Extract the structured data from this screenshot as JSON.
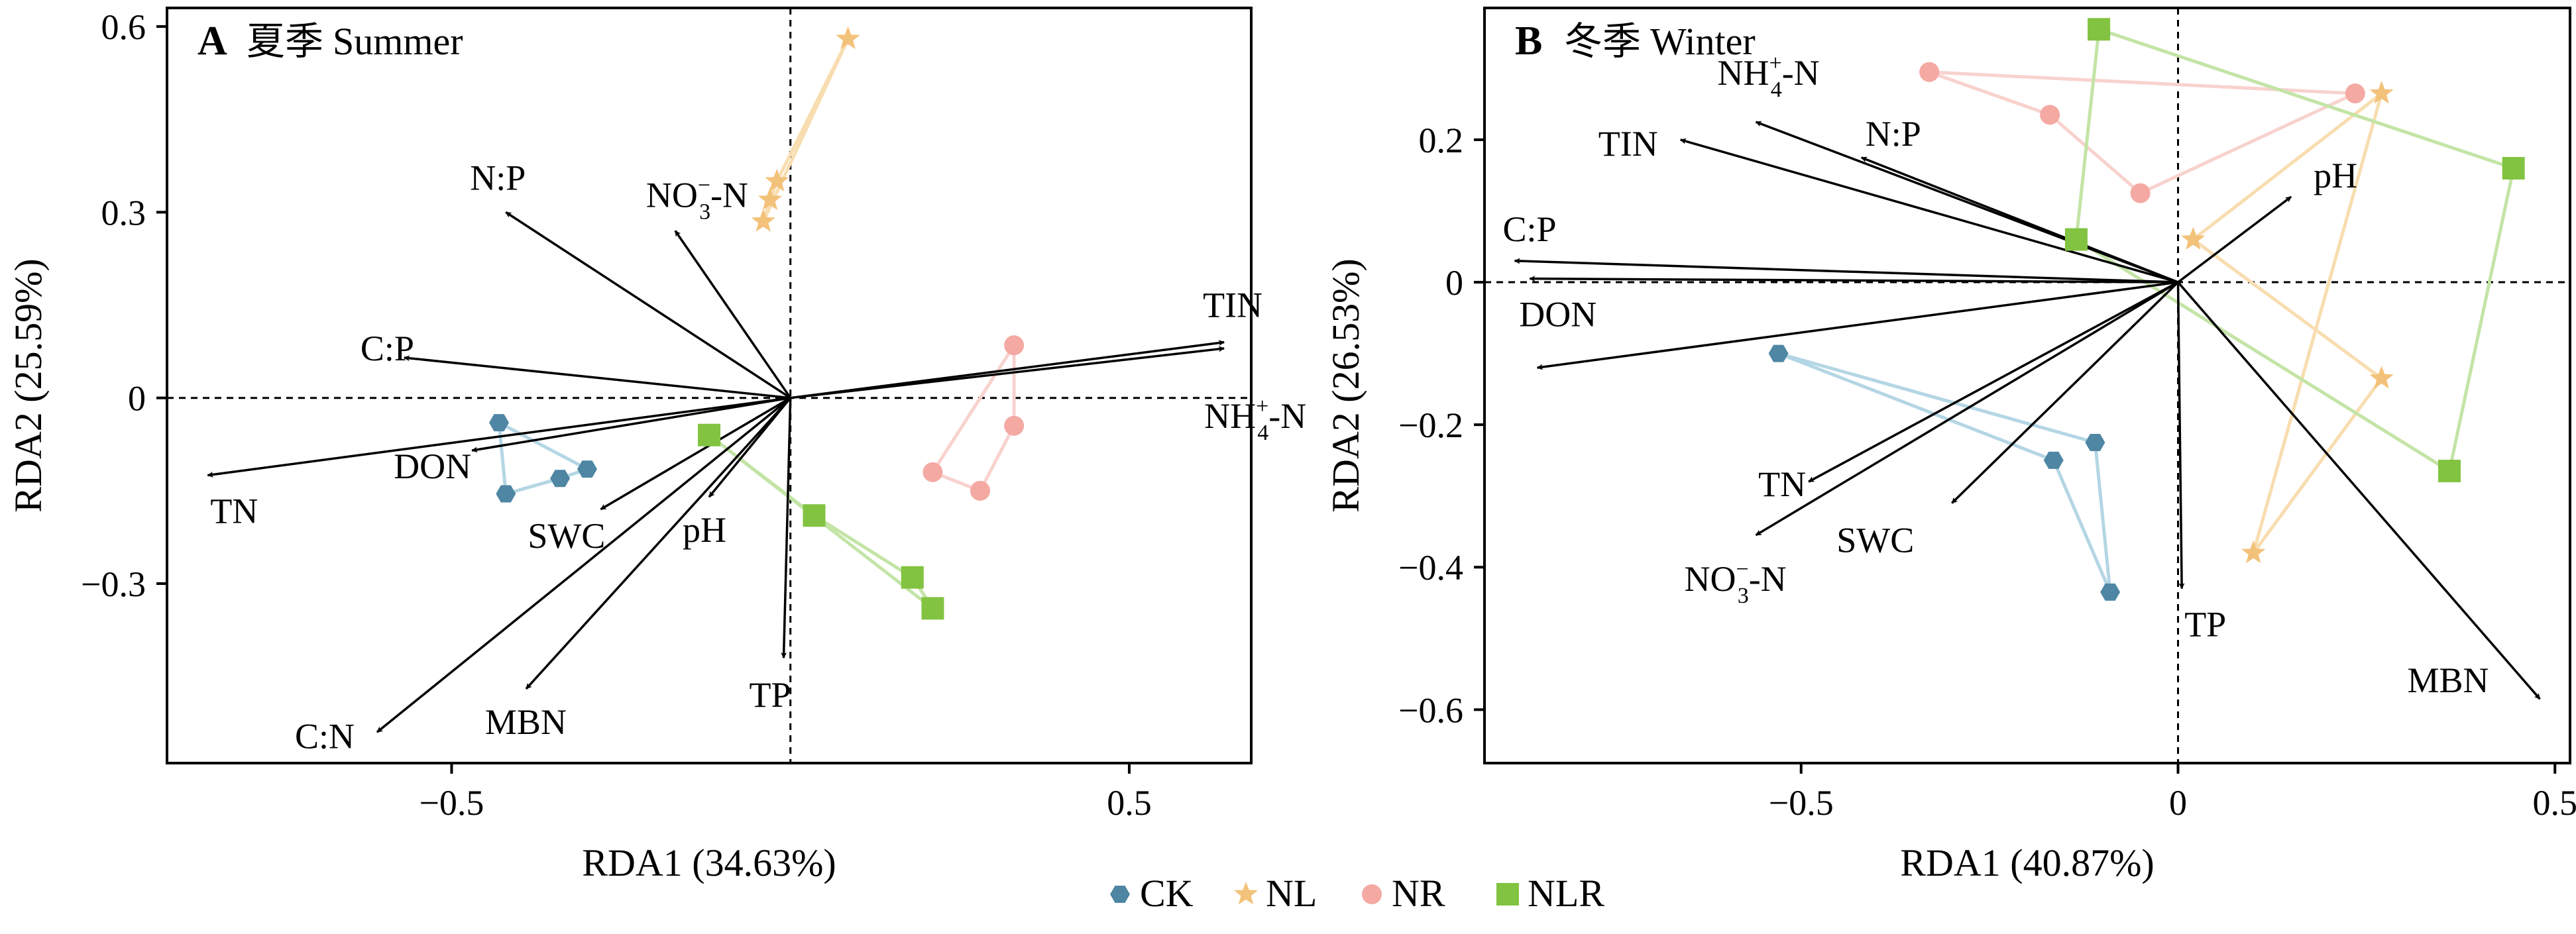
{
  "colors": {
    "CK": "#4e86a4",
    "NL": "#f3c27a",
    "NR": "#f4a9a3",
    "NLR": "#82c341",
    "CK_line": "#b4d6e4",
    "NL_line": "#f8ddb0",
    "NR_line": "#f8d2ce",
    "NLR_line": "#c3e4a6"
  },
  "legend": [
    {
      "key": "CK",
      "label": "CK",
      "icon": "hexagon-icon"
    },
    {
      "key": "NL",
      "label": "NL",
      "icon": "star-icon"
    },
    {
      "key": "NR",
      "label": "NR",
      "icon": "circle-icon"
    },
    {
      "key": "NLR",
      "label": "NLR",
      "icon": "square-icon"
    }
  ],
  "chart_data": [
    {
      "type": "scatter",
      "panel": "A",
      "title_cn": "夏季",
      "title_en": "Summer",
      "xlabel": "RDA1 (34.63%)",
      "ylabel": "RDA2 (25.59%)",
      "xlim": [
        -0.92,
        0.68
      ],
      "ylim": [
        -0.59,
        0.63
      ],
      "xticks": [
        -0.5,
        0.5
      ],
      "xtick_labels": [
        "−0.5",
        "0.5"
      ],
      "yticks": [
        0.6,
        0.3,
        0,
        -0.3
      ],
      "ytick_labels": [
        "0.6",
        "0.3",
        "0",
        "−0.3"
      ],
      "reference_lines": {
        "x": 0,
        "y": 0
      },
      "arrows": [
        {
          "label": "N:P",
          "x": -0.42,
          "y": 0.3
        },
        {
          "label": "NO3-N",
          "label_base": "NO",
          "label_sub": "3",
          "label_sup": "−",
          "label_tail": "-N",
          "x": -0.17,
          "y": 0.27
        },
        {
          "label": "C:P",
          "x": -0.57,
          "y": 0.065
        },
        {
          "label": "TIN",
          "x": 0.64,
          "y": 0.09
        },
        {
          "label": "NH4+-N",
          "label_base": "NH",
          "label_sub": "4",
          "label_sup": "+",
          "label_tail": "-N",
          "x": 0.64,
          "y": 0.08
        },
        {
          "label": "TN",
          "x": -0.86,
          "y": -0.125
        },
        {
          "label": "DON",
          "x": -0.47,
          "y": -0.085
        },
        {
          "label": "SWC",
          "x": -0.28,
          "y": -0.18
        },
        {
          "label": "pH",
          "x": -0.12,
          "y": -0.16
        },
        {
          "label": "TP",
          "x": -0.01,
          "y": -0.42
        },
        {
          "label": "MBN",
          "x": -0.39,
          "y": -0.47
        },
        {
          "label": "C:N",
          "x": -0.61,
          "y": -0.54
        }
      ],
      "groups": [
        {
          "name": "CK",
          "points": [
            [
              -0.43,
              -0.04
            ],
            [
              -0.42,
              -0.155
            ],
            [
              -0.34,
              -0.13
            ],
            [
              -0.3,
              -0.115
            ]
          ]
        },
        {
          "name": "NL",
          "points": [
            [
              0.085,
              0.58
            ],
            [
              -0.02,
              0.35
            ],
            [
              -0.03,
              0.32
            ],
            [
              -0.04,
              0.285
            ]
          ]
        },
        {
          "name": "NR",
          "points": [
            [
              0.33,
              0.085
            ],
            [
              0.33,
              -0.045
            ],
            [
              0.28,
              -0.15
            ],
            [
              0.21,
              -0.12
            ]
          ]
        },
        {
          "name": "NLR",
          "points": [
            [
              -0.12,
              -0.06
            ],
            [
              0.035,
              -0.19
            ],
            [
              0.18,
              -0.29
            ],
            [
              0.21,
              -0.34
            ]
          ]
        }
      ]
    },
    {
      "type": "scatter",
      "panel": "B",
      "title_cn": "冬季",
      "title_en": "Winter",
      "xlabel": "RDA1 (40.87%)",
      "ylabel": "RDA2 (26.53%)",
      "xlim": [
        -0.92,
        0.52
      ],
      "ylim": [
        -0.675,
        0.385
      ],
      "xticks": [
        -0.5,
        0,
        0.5
      ],
      "xtick_labels": [
        "−0.5",
        "0",
        "0.5"
      ],
      "yticks": [
        0.2,
        0,
        -0.2,
        -0.4,
        -0.6
      ],
      "ytick_labels": [
        "0.2",
        "0",
        "−0.2",
        "−0.4",
        "−0.6"
      ],
      "reference_lines": {
        "x": 0,
        "y": 0
      },
      "arrows": [
        {
          "label": "NH4+-N",
          "label_base": "NH",
          "label_sub": "4",
          "label_sup": "+",
          "label_tail": "-N",
          "x": -0.56,
          "y": 0.225
        },
        {
          "label": "TIN",
          "x": -0.66,
          "y": 0.2
        },
        {
          "label": "N:P",
          "x": -0.42,
          "y": 0.175
        },
        {
          "label": "pH",
          "x": 0.15,
          "y": 0.12
        },
        {
          "label": "C:P",
          "x": -0.88,
          "y": 0.03
        },
        {
          "label": "DON",
          "x": -0.86,
          "y": 0.005
        },
        {
          "label": "",
          "x": -0.85,
          "y": -0.12
        },
        {
          "label": "TN",
          "x": -0.49,
          "y": -0.28
        },
        {
          "label": "NO3-N",
          "label_base": "NO",
          "label_sub": "3",
          "label_sup": "−",
          "label_tail": "-N",
          "x": -0.56,
          "y": -0.355
        },
        {
          "label": "SWC",
          "x": -0.3,
          "y": -0.31
        },
        {
          "label": "TP",
          "x": 0.005,
          "y": -0.43
        },
        {
          "label": "MBN",
          "x": 0.48,
          "y": -0.585
        }
      ],
      "groups": [
        {
          "name": "CK",
          "points": [
            [
              -0.53,
              -0.1
            ],
            [
              -0.11,
              -0.225
            ],
            [
              -0.09,
              -0.435
            ],
            [
              -0.165,
              -0.25
            ]
          ]
        },
        {
          "name": "NL",
          "points": [
            [
              0.27,
              0.265
            ],
            [
              0.02,
              0.06
            ],
            [
              0.27,
              -0.135
            ],
            [
              0.1,
              -0.38
            ]
          ]
        },
        {
          "name": "NR",
          "points": [
            [
              -0.33,
              0.295
            ],
            [
              0.235,
              0.265
            ],
            [
              -0.05,
              0.125
            ],
            [
              -0.17,
              0.235
            ]
          ]
        },
        {
          "name": "NLR",
          "points": [
            [
              -0.105,
              0.355
            ],
            [
              0.445,
              0.16
            ],
            [
              0.36,
              -0.265
            ],
            [
              -0.135,
              0.06
            ]
          ]
        }
      ]
    }
  ]
}
